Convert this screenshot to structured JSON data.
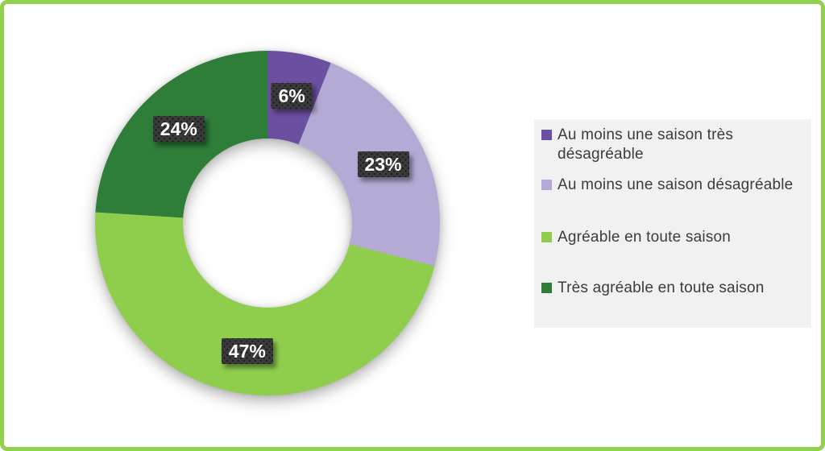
{
  "chart_data": {
    "type": "pie",
    "subtype": "donut",
    "title": "",
    "categories": [
      "Au moins une saison très désagréable",
      "Au moins une saison désagréable",
      "Agréable en toute saison",
      "Très agréable en toute saison"
    ],
    "values": [
      6,
      23,
      47,
      24
    ],
    "data_labels": [
      "6%",
      "23%",
      "47%",
      "24%"
    ],
    "colors": [
      "#6B4FA0",
      "#B5AAD6",
      "#8FCE4D",
      "#2E7D39"
    ],
    "start_angle_deg": 0,
    "direction": "clockwise",
    "hole_ratio": 0.49,
    "legend_position": "right",
    "grid": false
  },
  "styles": {
    "frame_border_color": "#92D050",
    "legend_background": "#F1F1F1",
    "legend_text_color": "#3C3C3C",
    "data_label_background": "#3B3B3B",
    "data_label_text_color": "#FFFFFF"
  }
}
